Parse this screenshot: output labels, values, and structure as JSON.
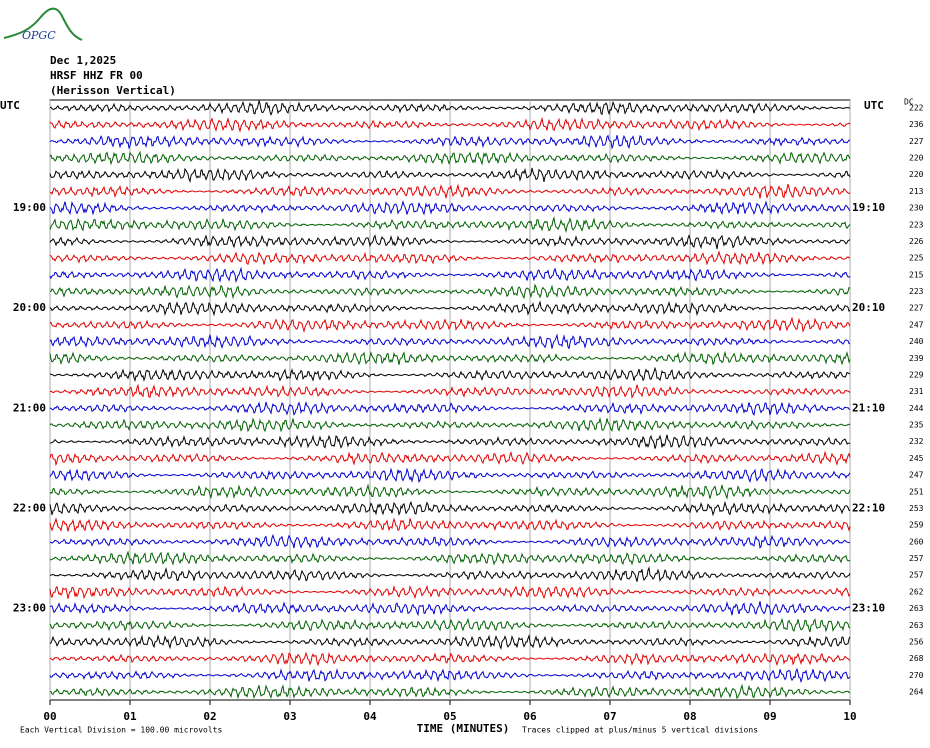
{
  "header": {
    "logo": "OPGC",
    "date": "Dec 1,2025",
    "station": "HRSF HHZ FR 00",
    "location": "(Herisson Vertical)"
  },
  "chart_data": {
    "type": "helicorder",
    "left_axis_label": "UTC",
    "right_axis_label": "UTC",
    "dc_label": "DC",
    "x_label": "TIME (MINUTES)",
    "xlim": [
      0,
      10
    ],
    "xticks": [
      {
        "value": 0,
        "label": "00"
      },
      {
        "value": 1,
        "label": "01"
      },
      {
        "value": 2,
        "label": "02"
      },
      {
        "value": 3,
        "label": "03"
      },
      {
        "value": 4,
        "label": "04"
      },
      {
        "value": 5,
        "label": "05"
      },
      {
        "value": 6,
        "label": "06"
      },
      {
        "value": 7,
        "label": "07"
      },
      {
        "value": 8,
        "label": "08"
      },
      {
        "value": 9,
        "label": "09"
      },
      {
        "value": 10,
        "label": "10"
      }
    ],
    "grid": true,
    "colors": [
      "#000000",
      "#e00000",
      "#0000d0",
      "#006000"
    ],
    "left_labels": [
      null,
      null,
      null,
      null,
      null,
      null,
      "19:00",
      null,
      null,
      null,
      null,
      null,
      "20:00",
      null,
      null,
      null,
      null,
      null,
      "21:00",
      null,
      null,
      null,
      null,
      null,
      "22:00",
      null,
      null,
      null,
      null,
      null,
      "23:00",
      null,
      null,
      null,
      null,
      null
    ],
    "right_labels": [
      null,
      null,
      null,
      null,
      null,
      null,
      "19:10",
      null,
      null,
      null,
      null,
      null,
      "20:10",
      null,
      null,
      null,
      null,
      null,
      "21:10",
      null,
      null,
      null,
      null,
      null,
      "22:10",
      null,
      null,
      null,
      null,
      null,
      "23:10",
      null,
      null,
      null,
      null,
      null
    ],
    "dc": [
      222,
      236,
      227,
      220,
      220,
      213,
      230,
      223,
      226,
      225,
      215,
      223,
      227,
      247,
      240,
      239,
      229,
      231,
      244,
      235,
      232,
      245,
      247,
      251,
      253,
      259,
      260,
      257,
      257,
      262,
      263,
      263,
      256,
      268,
      270,
      264
    ],
    "footer_left": "Each Vertical Division =  100.00 microvolts",
    "footer_right": "Traces clipped at plus/minus 5 vertical divisions"
  }
}
